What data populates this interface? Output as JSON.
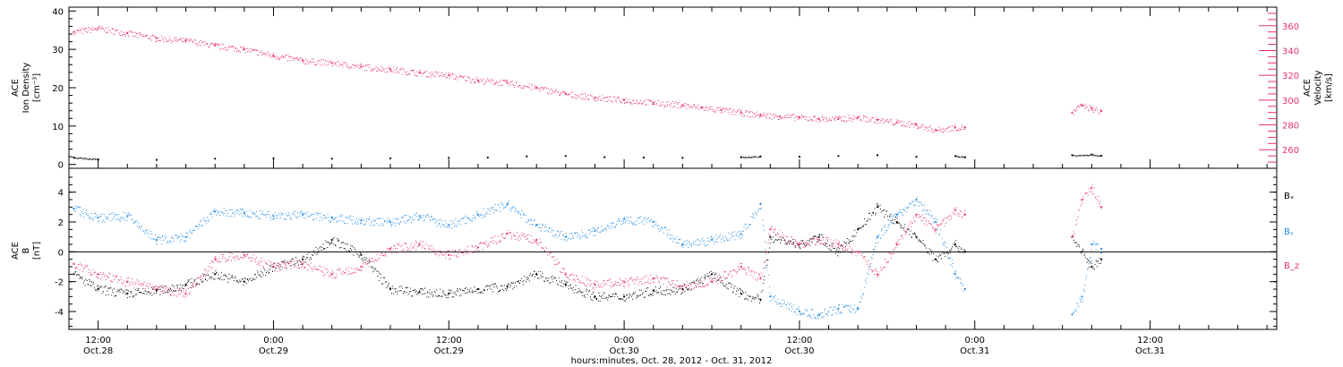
{
  "chart_data": [
    {
      "type": "scatter",
      "panel": "top",
      "ylabel_left": [
        "ACE",
        "Ion Density",
        "[cm⁻³]"
      ],
      "ylabel_right": [
        "ACE",
        "Velocity",
        "[km/s]"
      ],
      "yticks_left": [
        "0",
        "10",
        "20",
        "30",
        "40"
      ],
      "ylim_left": [
        -1,
        41
      ],
      "yticks_right": [
        "260",
        "280",
        "300",
        "320",
        "340",
        "360"
      ],
      "ylim_right": [
        245,
        375
      ],
      "colors": {
        "density": "#000000",
        "velocity": "#e8326e"
      },
      "series": [
        {
          "name": "",
          "axis": "left",
          "color": "#000000",
          "points": [
            [
              9.5,
              1.8
            ],
            [
              12,
              1.3
            ],
            [
              18,
              1.2
            ],
            [
              24,
              1.5
            ],
            [
              30,
              1.6
            ],
            [
              36,
              1.5
            ],
            [
              42,
              1.6
            ],
            [
              48,
              1.7
            ],
            [
              52,
              1.8
            ],
            [
              56,
              2.1
            ],
            [
              60,
              2.2
            ],
            [
              64,
              1.9
            ],
            [
              68,
              1.8
            ],
            [
              72,
              1.7
            ],
            [
              78,
              1.9
            ],
            [
              80,
              2.1
            ],
            [
              84,
              2.0
            ],
            [
              88,
              2.2
            ],
            [
              92,
              2.4
            ],
            [
              96,
              2.0
            ],
            [
              100,
              2.2
            ],
            [
              101,
              1.9
            ],
            [
              112,
              2.4
            ],
            [
              114,
              2.6
            ],
            [
              115,
              2.3
            ]
          ]
        },
        {
          "name": "",
          "axis": "right",
          "color": "#e8326e",
          "points": [
            [
              9.5,
              355
            ],
            [
              12,
              358
            ],
            [
              15,
              354
            ],
            [
              18,
              350
            ],
            [
              21,
              348
            ],
            [
              24,
              344
            ],
            [
              27,
              341
            ],
            [
              30,
              336
            ],
            [
              33,
              332
            ],
            [
              36,
              330
            ],
            [
              39,
              327
            ],
            [
              42,
              325
            ],
            [
              45,
              322
            ],
            [
              48,
              320
            ],
            [
              51,
              316
            ],
            [
              54,
              314
            ],
            [
              57,
              310
            ],
            [
              60,
              305
            ],
            [
              63,
              302
            ],
            [
              66,
              300
            ],
            [
              69,
              298
            ],
            [
              72,
              296
            ],
            [
              74,
              294
            ],
            [
              76,
              292
            ],
            [
              78,
              290
            ],
            [
              80,
              288
            ],
            [
              82,
              287
            ],
            [
              84,
              286
            ],
            [
              86,
              285
            ],
            [
              88,
              285
            ],
            [
              90,
              286
            ],
            [
              92,
              284
            ],
            [
              94,
              282
            ],
            [
              96,
              280
            ],
            [
              98,
              276
            ],
            [
              100,
              278
            ],
            [
              101,
              278
            ],
            [
              112,
              290
            ],
            [
              113,
              296
            ],
            [
              114,
              293
            ],
            [
              115,
              291
            ]
          ]
        }
      ]
    },
    {
      "type": "scatter",
      "panel": "bottom",
      "ylabel_left": [
        "ACE",
        "B",
        "[nT]"
      ],
      "yticks_left": [
        "-4",
        "-2",
        "0",
        "2",
        "4"
      ],
      "ylim_left": [
        -5.2,
        5.6
      ],
      "zero_line": true,
      "legend_position": "right",
      "series": [
        {
          "name": "Bₓ",
          "color": "#000000",
          "points": [
            [
              9.5,
              -1.5
            ],
            [
              12,
              -2.5
            ],
            [
              15,
              -2.8
            ],
            [
              18,
              -2.6
            ],
            [
              21,
              -2.2
            ],
            [
              24,
              -1.5
            ],
            [
              27,
              -2.0
            ],
            [
              30,
              -1.0
            ],
            [
              33,
              -0.5
            ],
            [
              36,
              0.8
            ],
            [
              39,
              -0.2
            ],
            [
              42,
              -2.5
            ],
            [
              45,
              -2.7
            ],
            [
              48,
              -2.8
            ],
            [
              51,
              -2.5
            ],
            [
              54,
              -2.3
            ],
            [
              57,
              -1.5
            ],
            [
              60,
              -2.2
            ],
            [
              63,
              -3.0
            ],
            [
              66,
              -3.0
            ],
            [
              69,
              -2.6
            ],
            [
              72,
              -2.5
            ],
            [
              75,
              -1.5
            ],
            [
              78,
              -2.8
            ],
            [
              80,
              -3.2
            ],
            [
              81,
              1.0
            ],
            [
              84,
              0.5
            ],
            [
              86,
              1.0
            ],
            [
              88,
              0.0
            ],
            [
              90,
              1.5
            ],
            [
              92,
              3.0
            ],
            [
              94,
              2.0
            ],
            [
              96,
              1.0
            ],
            [
              98,
              -0.5
            ],
            [
              100,
              0.5
            ],
            [
              101,
              0.0
            ],
            [
              112,
              1.0
            ],
            [
              113,
              0.0
            ],
            [
              114,
              -1.0
            ],
            [
              115,
              -0.5
            ]
          ]
        },
        {
          "name": "Bᵧ",
          "color": "#1e88e5",
          "points": [
            [
              9.5,
              2.9
            ],
            [
              12,
              2.3
            ],
            [
              15,
              2.4
            ],
            [
              18,
              0.8
            ],
            [
              21,
              1.0
            ],
            [
              24,
              2.7
            ],
            [
              27,
              2.6
            ],
            [
              30,
              2.4
            ],
            [
              33,
              2.5
            ],
            [
              36,
              2.3
            ],
            [
              39,
              2.1
            ],
            [
              42,
              2.0
            ],
            [
              45,
              2.4
            ],
            [
              48,
              1.8
            ],
            [
              51,
              2.5
            ],
            [
              54,
              3.2
            ],
            [
              57,
              1.8
            ],
            [
              60,
              1.0
            ],
            [
              63,
              1.4
            ],
            [
              66,
              2.2
            ],
            [
              69,
              2.0
            ],
            [
              72,
              0.5
            ],
            [
              75,
              0.8
            ],
            [
              78,
              1.2
            ],
            [
              80,
              3.2
            ],
            [
              81,
              -3.0
            ],
            [
              84,
              -4.0
            ],
            [
              86,
              -4.2
            ],
            [
              88,
              -3.8
            ],
            [
              90,
              -3.8
            ],
            [
              92,
              1.0
            ],
            [
              94,
              2.5
            ],
            [
              96,
              3.5
            ],
            [
              98,
              2.0
            ],
            [
              100,
              -1.5
            ],
            [
              101,
              -2.5
            ],
            [
              112,
              -4.2
            ],
            [
              113,
              -3.0
            ],
            [
              114,
              0.5
            ],
            [
              115,
              0.2
            ]
          ]
        },
        {
          "name": "B_z",
          "color": "#e8326e",
          "points": [
            [
              9.5,
              -0.8
            ],
            [
              12,
              -1.5
            ],
            [
              15,
              -2.0
            ],
            [
              18,
              -2.5
            ],
            [
              21,
              -2.8
            ],
            [
              24,
              -0.5
            ],
            [
              27,
              -0.2
            ],
            [
              30,
              -1.0
            ],
            [
              33,
              -0.8
            ],
            [
              36,
              -1.5
            ],
            [
              39,
              -1.0
            ],
            [
              42,
              0.2
            ],
            [
              45,
              0.5
            ],
            [
              48,
              -0.2
            ],
            [
              51,
              0.3
            ],
            [
              54,
              1.2
            ],
            [
              57,
              0.8
            ],
            [
              60,
              -1.5
            ],
            [
              63,
              -2.2
            ],
            [
              66,
              -2.0
            ],
            [
              69,
              -1.8
            ],
            [
              72,
              -2.3
            ],
            [
              75,
              -2.0
            ],
            [
              78,
              -1.0
            ],
            [
              80,
              -1.8
            ],
            [
              81,
              1.5
            ],
            [
              84,
              0.5
            ],
            [
              86,
              0.8
            ],
            [
              88,
              0.5
            ],
            [
              90,
              0.0
            ],
            [
              92,
              -1.5
            ],
            [
              94,
              0.5
            ],
            [
              96,
              2.5
            ],
            [
              98,
              1.5
            ],
            [
              100,
              2.8
            ],
            [
              101,
              2.5
            ],
            [
              112,
              1.0
            ],
            [
              113,
              3.5
            ],
            [
              114,
              4.3
            ],
            [
              115,
              3.0
            ]
          ]
        }
      ]
    }
  ],
  "x_axis": {
    "label": "hours:minutes, Oct. 28, 2012 - Oct. 31, 2012",
    "xlim": [
      9,
      133
    ],
    "major_ticks": [
      {
        "hours": 12,
        "time": "12:00",
        "date": "Oct.28"
      },
      {
        "hours": 30,
        "time": "0:00",
        "date": "Oct.29"
      },
      {
        "hours": 48,
        "time": "12:00",
        "date": "Oct.29"
      },
      {
        "hours": 66,
        "time": "0:00",
        "date": "Oct.30"
      },
      {
        "hours": 84,
        "time": "12:00",
        "date": "Oct.30"
      },
      {
        "hours": 102,
        "time": "0:00",
        "date": "Oct.31"
      },
      {
        "hours": 120,
        "time": "12:00",
        "date": "Oct.31"
      }
    ]
  }
}
